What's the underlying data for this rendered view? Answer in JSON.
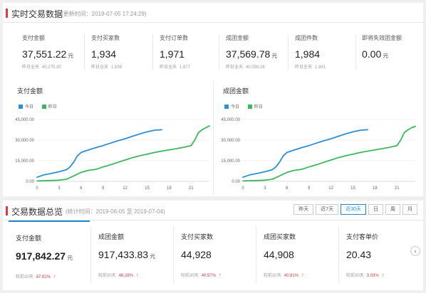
{
  "realtime": {
    "title": "实时交易数据",
    "update_time": "(更新时间：2019-07-05 17:24:29)",
    "metrics": [
      {
        "label": "支付金额",
        "value": "37,551.22",
        "unit": "元",
        "sub_label": "昨日全天",
        "sub_value": "40,275.30"
      },
      {
        "label": "支付买家数",
        "value": "1,934",
        "unit": "",
        "sub_label": "昨日全天",
        "sub_value": "1,939"
      },
      {
        "label": "支付订单数",
        "value": "1,971",
        "unit": "",
        "sub_label": "昨日全天",
        "sub_value": "1,977"
      },
      {
        "label": "成团金额",
        "value": "37,569.78",
        "unit": "元",
        "sub_label": "昨日全天",
        "sub_value": "40,050.26"
      },
      {
        "label": "成团件数",
        "value": "1,984",
        "unit": "",
        "sub_label": "昨日全天",
        "sub_value": "1,981"
      },
      {
        "label": "即将失效团金额",
        "value": "0.00",
        "unit": "元",
        "sub_label": "",
        "sub_value": ""
      }
    ]
  },
  "chart_data": [
    {
      "type": "line",
      "title": "支付金额",
      "legend_position": "top-left",
      "x_ticks": [
        0,
        3,
        6,
        9,
        12,
        15,
        18,
        21
      ],
      "y_ticks": [
        "0.00",
        "15,000.00",
        "30,000.00",
        "45,000.00"
      ],
      "xlim": [
        0,
        23.5
      ],
      "ylim": [
        0,
        45000
      ],
      "grid": "horizontal",
      "series": [
        {
          "name": "今日",
          "color": "#2b8fd8",
          "x": [
            0,
            1,
            2,
            3,
            4,
            4.5,
            5,
            5.5,
            6,
            7,
            8,
            9,
            10,
            11,
            12,
            13,
            14,
            15,
            16,
            17
          ],
          "y": [
            3000,
            4800,
            5800,
            7000,
            8500,
            10500,
            14000,
            18500,
            21000,
            22800,
            24500,
            26000,
            27800,
            29500,
            31000,
            32800,
            34500,
            36000,
            37200,
            37551
          ]
        },
        {
          "name": "昨日",
          "color": "#3bb95a",
          "x": [
            0,
            2,
            3,
            4,
            5,
            6,
            7,
            8,
            9,
            10,
            11,
            12,
            13,
            14,
            15,
            16,
            17,
            18,
            19,
            20,
            21,
            21.5,
            22,
            22.5,
            23,
            23.5
          ],
          "y": [
            300,
            600,
            900,
            1500,
            4000,
            6500,
            8000,
            8700,
            10500,
            12000,
            13800,
            15500,
            17200,
            18600,
            19800,
            21000,
            22000,
            22900,
            23800,
            24800,
            26000,
            30000,
            35500,
            37500,
            39000,
            40275
          ]
        }
      ]
    },
    {
      "type": "line",
      "title": "成团金额",
      "legend_position": "top-left",
      "x_ticks": [
        0,
        3,
        6,
        9,
        12,
        15,
        18,
        21
      ],
      "y_ticks": [
        "0.00",
        "15,000.00",
        "30,000.00",
        "45,000.00"
      ],
      "xlim": [
        0,
        23.5
      ],
      "ylim": [
        0,
        45000
      ],
      "grid": "horizontal",
      "series": [
        {
          "name": "今日",
          "color": "#2b8fd8",
          "x": [
            0,
            1,
            2,
            3,
            4,
            4.5,
            5,
            5.5,
            6,
            7,
            8,
            9,
            10,
            11,
            12,
            13,
            14,
            15,
            16,
            17
          ],
          "y": [
            3000,
            4800,
            5800,
            7000,
            8500,
            10500,
            14000,
            18500,
            21000,
            22800,
            24500,
            26000,
            27800,
            29500,
            31000,
            32800,
            34500,
            36000,
            37200,
            37570
          ]
        },
        {
          "name": "昨日",
          "color": "#3bb95a",
          "x": [
            0,
            2,
            3,
            4,
            5,
            6,
            7,
            8,
            9,
            10,
            11,
            12,
            13,
            14,
            15,
            16,
            17,
            18,
            19,
            20,
            21,
            21.5,
            22,
            22.5,
            23,
            23.5
          ],
          "y": [
            300,
            600,
            900,
            1500,
            4000,
            6500,
            8000,
            8700,
            10500,
            12000,
            13800,
            15500,
            17200,
            18600,
            19800,
            21000,
            22000,
            22900,
            23800,
            24800,
            26000,
            30000,
            35500,
            37500,
            39000,
            40050
          ]
        }
      ]
    }
  ],
  "history": {
    "title": "交易数据总览",
    "period": "(统计时间：2019-06-05 至 2019-07-04)",
    "range_buttons": [
      {
        "label": "昨天",
        "active": false
      },
      {
        "label": "近7天",
        "active": false
      },
      {
        "label": "近30天",
        "active": true
      },
      {
        "label": "日",
        "active": false
      },
      {
        "label": "周",
        "active": false
      },
      {
        "label": "月",
        "active": false
      }
    ],
    "cards": [
      {
        "label": "支付金额",
        "value": "917,842.27",
        "unit": "元",
        "compare_label": "较前30天",
        "compare_pct": "47.92%",
        "trend": "up"
      },
      {
        "label": "成团金额",
        "value": "917,433.83",
        "unit": "元",
        "compare_label": "较前30天",
        "compare_pct": "48.28%",
        "trend": "up"
      },
      {
        "label": "支付买家数",
        "value": "44,928",
        "unit": "",
        "compare_label": "较前30天",
        "compare_pct": "40.57%",
        "trend": "up"
      },
      {
        "label": "成团买家数",
        "value": "44,908",
        "unit": "",
        "compare_label": "较前30天",
        "compare_pct": "40.81%",
        "trend": "up"
      },
      {
        "label": "支付客单价",
        "value": "20.43",
        "unit": "",
        "compare_label": "较前30天",
        "compare_pct": "3.03%",
        "trend": "up"
      }
    ],
    "next_icon": "chevron-right-icon",
    "next_glyph": "›",
    "trend_glyph": "↑",
    "accent_color": "#1f88d6",
    "up_color": "#e4393c"
  }
}
